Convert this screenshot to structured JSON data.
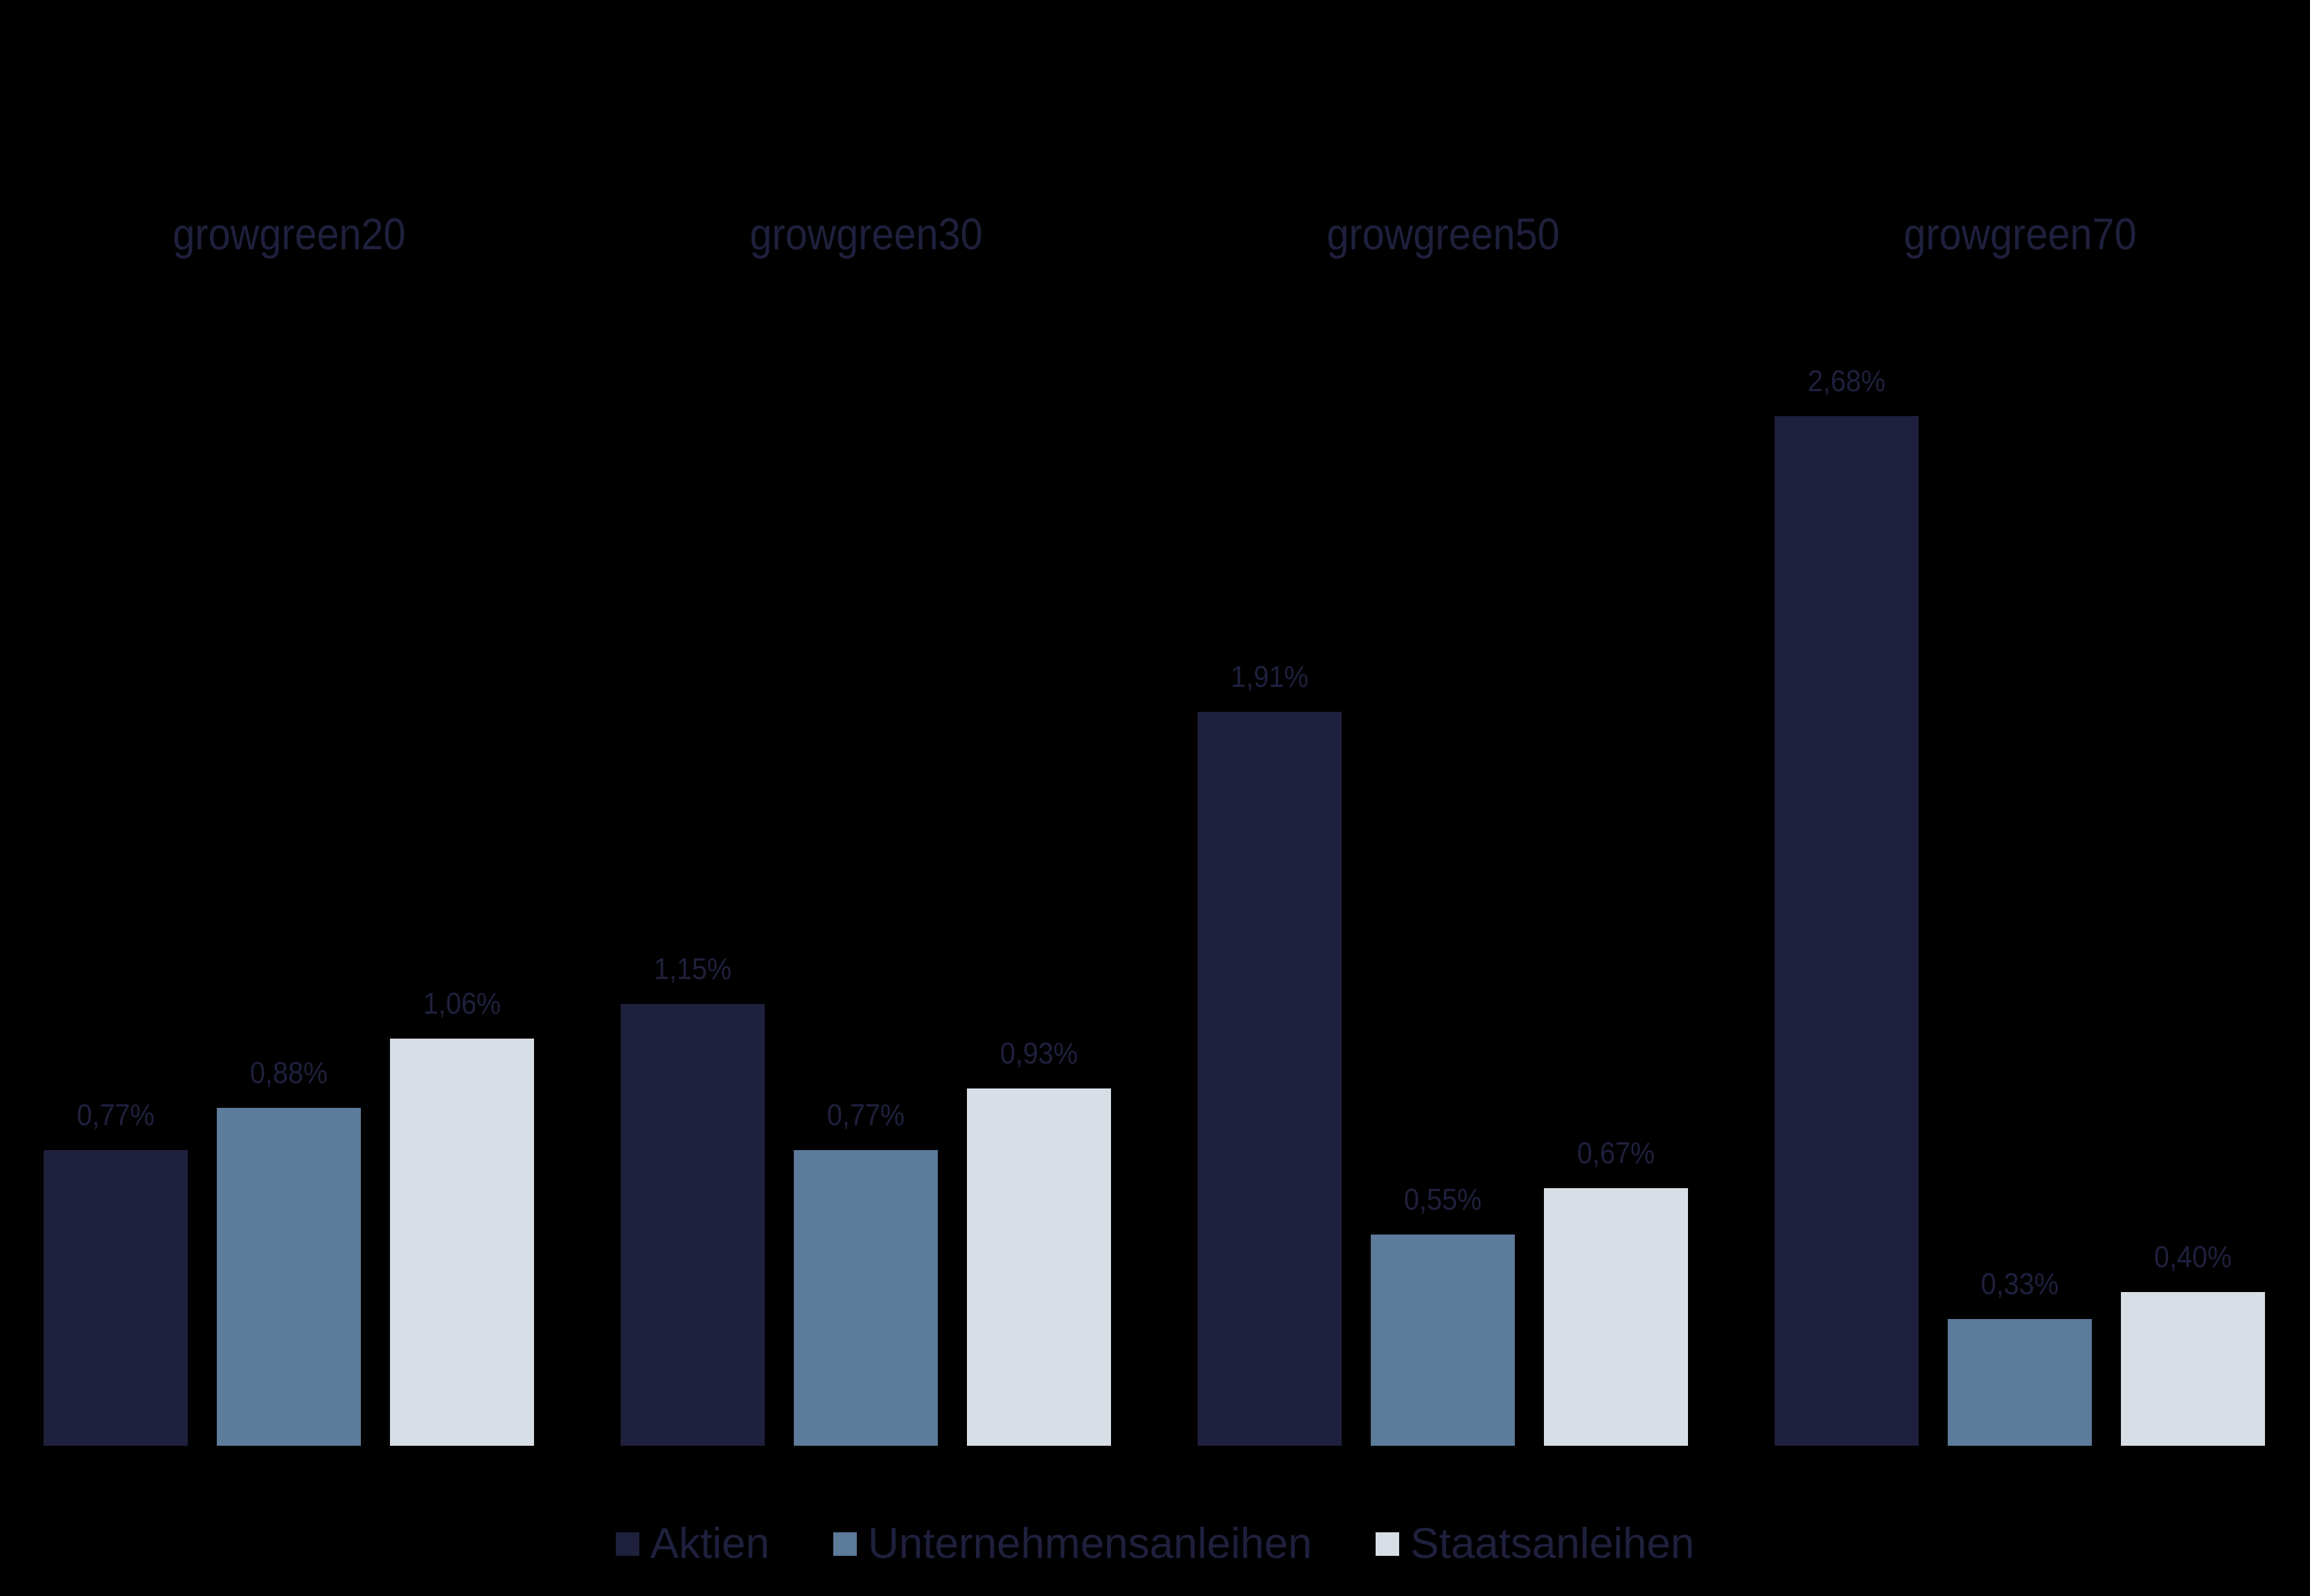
{
  "chart_data": {
    "type": "bar",
    "title": "",
    "xlabel": "",
    "ylabel": "",
    "categories": [
      "growgreen20",
      "growgreen30",
      "growgreen50",
      "growgreen70"
    ],
    "series": [
      {
        "name": "Aktien",
        "color": "#1F203D",
        "values": [
          0.77,
          1.15,
          1.91,
          2.68
        ],
        "labels": [
          "0,77%",
          "1,15%",
          "1,91%",
          "2,68%"
        ]
      },
      {
        "name": "Unternehmensanleihen",
        "color": "#5D7B9A",
        "values": [
          0.88,
          0.77,
          0.55,
          0.33
        ],
        "labels": [
          "0,88%",
          "0,77%",
          "0,55%",
          "0,33%"
        ]
      },
      {
        "name": "Staatsanleihen",
        "color": "#D7DEE6",
        "values": [
          1.06,
          0.93,
          0.67,
          0.4
        ],
        "labels": [
          "1,06%",
          "0,93%",
          "0,67%",
          "0,40%"
        ]
      }
    ],
    "value_format": "percent, comma decimal",
    "ylim": [
      0,
      3
    ],
    "grid": false,
    "axes_visible": false,
    "category_labels_position": "top",
    "legend_position": "bottom"
  },
  "legend": {
    "items": [
      {
        "label": "Aktien",
        "color": "#1F203D"
      },
      {
        "label": "Unternehmensanleihen",
        "color": "#5D7B9A"
      },
      {
        "label": "Staatsanleihen",
        "color": "#D7DEE6"
      }
    ]
  },
  "colors": {
    "background": "#000000",
    "text": "#1F203D"
  }
}
